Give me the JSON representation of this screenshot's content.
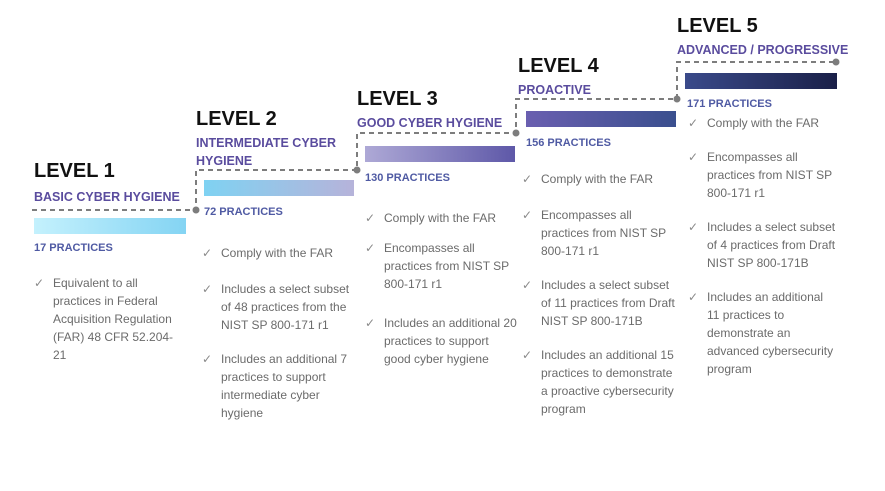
{
  "levels": [
    {
      "title": "LEVEL 1",
      "subtitle": "BASIC CYBER HYGIENE",
      "practices": "17 PRACTICES",
      "items": [
        "Equivalent to all practices in Federal Acquisition Regulation (FAR) 48 CFR 52.204-21"
      ]
    },
    {
      "title": "LEVEL 2",
      "subtitle": "INTERMEDIATE CYBER HYGIENE",
      "practices": "72 PRACTICES",
      "items": [
        "Comply with the FAR",
        "Includes a select subset of 48 practices from the NIST SP 800-171 r1",
        "Includes an additional 7 practices to support intermediate cyber hygiene"
      ]
    },
    {
      "title": "LEVEL 3",
      "subtitle": "GOOD CYBER HYGIENE",
      "practices": "130 PRACTICES",
      "items": [
        "Comply with the FAR",
        "Encompasses all practices from NIST SP 800-171 r1",
        "Includes an additional 20 practices to support good cyber hygiene"
      ]
    },
    {
      "title": "LEVEL 4",
      "subtitle": "PROACTIVE",
      "practices": "156 PRACTICES",
      "items": [
        "Comply with the FAR",
        "Encompasses all practices from NIST SP 800-171 r1",
        "Includes a select subset of 11 practices from Draft NIST SP 800-171B",
        "Includes an additional 15 practices to demonstrate a proactive cybersecurity program"
      ]
    },
    {
      "title": "LEVEL 5",
      "subtitle": "ADVANCED / PROGRESSIVE",
      "practices": "171 PRACTICES",
      "items": [
        "Comply with the FAR",
        "Encompasses all practices from NIST SP 800-171 r1",
        "Includes a select subset of 4 practices from Draft NIST SP 800-171B",
        "Includes an additional 11 practices to demonstrate an advanced cybersecurity program"
      ]
    }
  ],
  "check_icon": "✓",
  "colors": {
    "bar1": [
      "#c4f1fd",
      "#84d4f3"
    ],
    "bar2": [
      "#7fd2f2",
      "#b6b3da"
    ],
    "bar3": [
      "#aea9d6",
      "#5e58a8"
    ],
    "bar4": [
      "#6a5fb0",
      "#3a4f8e"
    ],
    "bar5": [
      "#3a4a8a",
      "#1a2048"
    ],
    "connector": "#7d7d7d",
    "subtitle": "#5a4c9e",
    "practices": "#4f5aa3",
    "text": "#6b6b6b"
  }
}
